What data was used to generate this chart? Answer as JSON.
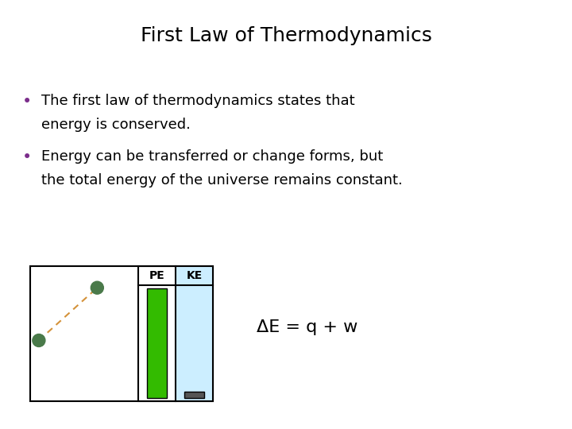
{
  "title": "First Law of Thermodynamics",
  "bullet1_line1": "The first law of thermodynamics states that",
  "bullet1_line2": "energy is conserved.",
  "bullet2_line1": "Energy can be transferred or change forms, but",
  "bullet2_line2": "the total energy of the universe remains constant.",
  "equation": "ΔE = q + w",
  "background_color": "#ffffff",
  "title_color": "#000000",
  "text_color": "#000000",
  "bullet_color": "#7B2D8B",
  "title_fontsize": 18,
  "text_fontsize": 13,
  "equation_fontsize": 16,
  "diagram": {
    "pe_bar_color": "#33bb00",
    "ke_bg_color": "#cceeff",
    "ke_bar_color": "#555555",
    "ball_color": "#4a7a4a",
    "dashed_line_color": "#d4923a",
    "label_fontsize": 9
  }
}
